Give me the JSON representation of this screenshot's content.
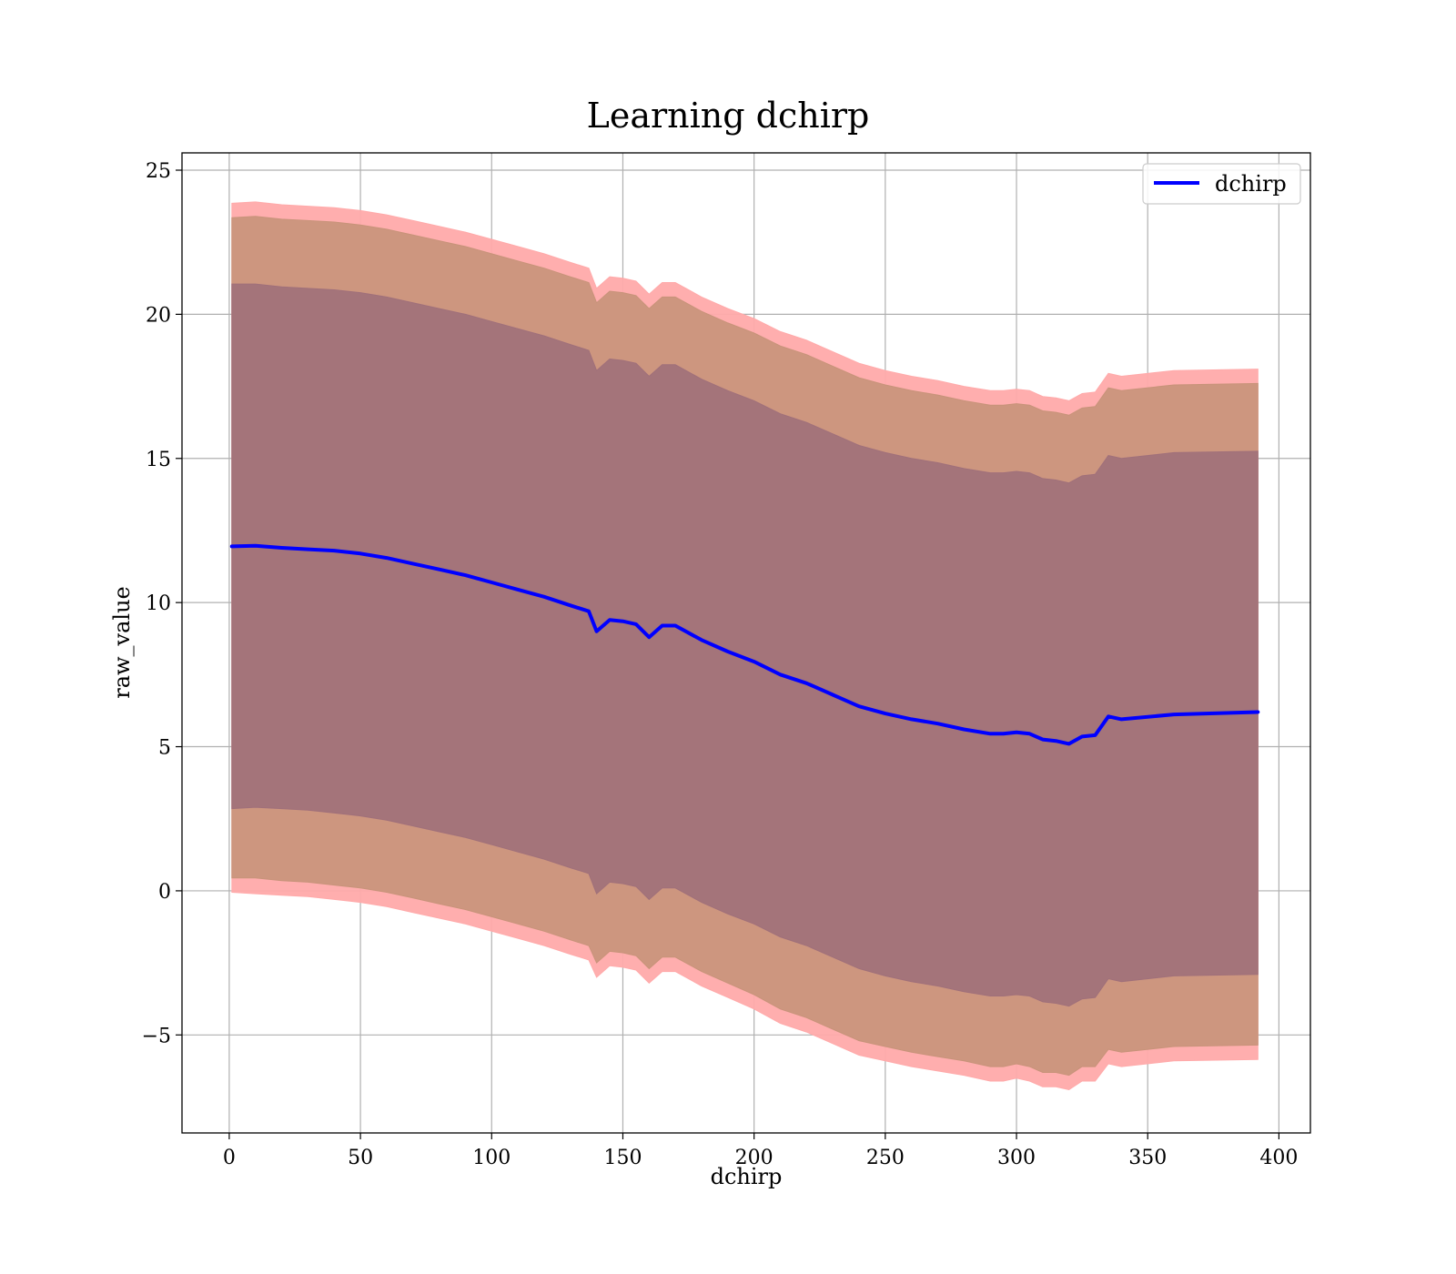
{
  "chart_data": {
    "type": "line",
    "title": "Learning dchirp",
    "xlabel": "dchirp",
    "ylabel": "raw_value",
    "xlim": [
      -18,
      412
    ],
    "ylim": [
      -8.4,
      25.6
    ],
    "xticks": [
      0,
      50,
      100,
      150,
      200,
      250,
      300,
      350,
      400
    ],
    "xtick_labels": [
      "0",
      "50",
      "100",
      "150",
      "200",
      "250",
      "300",
      "350",
      "400"
    ],
    "yticks": [
      -5,
      0,
      5,
      10,
      15,
      20,
      25
    ],
    "ytick_labels": [
      "−5",
      "0",
      "5",
      "10",
      "15",
      "20",
      "25"
    ],
    "grid": true,
    "legend": {
      "position": "top-right",
      "entries": [
        "dchirp"
      ]
    },
    "colors": {
      "line": "#0000ff",
      "band_outer": "#ffaaaa",
      "band_middle": "#c8937a",
      "band_inner": "#a0707a"
    },
    "x": [
      1,
      10,
      20,
      30,
      40,
      50,
      60,
      70,
      80,
      90,
      100,
      110,
      120,
      130,
      137,
      140,
      145,
      150,
      155,
      160,
      165,
      170,
      180,
      190,
      200,
      210,
      220,
      230,
      240,
      250,
      260,
      270,
      280,
      290,
      295,
      300,
      305,
      310,
      315,
      320,
      325,
      330,
      335,
      340,
      360,
      392
    ],
    "series": [
      {
        "name": "dchirp",
        "values": [
          11.95,
          11.97,
          11.9,
          11.85,
          11.8,
          11.7,
          11.55,
          11.35,
          11.15,
          10.95,
          10.7,
          10.45,
          10.2,
          9.9,
          9.7,
          9.0,
          9.4,
          9.35,
          9.25,
          8.8,
          9.2,
          9.2,
          8.7,
          8.3,
          7.95,
          7.5,
          7.2,
          6.8,
          6.4,
          6.15,
          5.95,
          5.8,
          5.6,
          5.45,
          5.45,
          5.5,
          5.45,
          5.25,
          5.2,
          5.1,
          5.35,
          5.4,
          6.05,
          5.95,
          6.12,
          6.2
        ],
        "bands": [
          {
            "lower": [
              -0.05,
              -0.1,
              -0.15,
              -0.2,
              -0.3,
              -0.4,
              -0.55,
              -0.75,
              -0.95,
              -1.15,
              -1.4,
              -1.65,
              -1.9,
              -2.2,
              -2.4,
              -3.0,
              -2.6,
              -2.65,
              -2.75,
              -3.2,
              -2.8,
              -2.8,
              -3.3,
              -3.7,
              -4.1,
              -4.6,
              -4.9,
              -5.3,
              -5.7,
              -5.9,
              -6.1,
              -6.25,
              -6.4,
              -6.6,
              -6.6,
              -6.5,
              -6.6,
              -6.8,
              -6.8,
              -6.9,
              -6.6,
              -6.6,
              -6.0,
              -6.1,
              -5.9,
              -5.85
            ],
            "upper": [
              23.85,
              23.9,
              23.8,
              23.75,
              23.7,
              23.6,
              23.45,
              23.25,
              23.05,
              22.85,
              22.6,
              22.35,
              22.1,
              21.8,
              21.6,
              20.9,
              21.3,
              21.25,
              21.15,
              20.7,
              21.1,
              21.1,
              20.6,
              20.2,
              19.85,
              19.4,
              19.1,
              18.7,
              18.3,
              18.05,
              17.85,
              17.7,
              17.5,
              17.35,
              17.35,
              17.4,
              17.35,
              17.15,
              17.1,
              17.0,
              17.25,
              17.3,
              17.95,
              17.85,
              18.05,
              18.1
            ]
          },
          {
            "lower": [
              0.45,
              0.45,
              0.35,
              0.3,
              0.2,
              0.1,
              -0.05,
              -0.25,
              -0.45,
              -0.65,
              -0.9,
              -1.15,
              -1.4,
              -1.7,
              -1.9,
              -2.5,
              -2.1,
              -2.15,
              -2.25,
              -2.7,
              -2.3,
              -2.3,
              -2.8,
              -3.2,
              -3.6,
              -4.1,
              -4.4,
              -4.8,
              -5.2,
              -5.4,
              -5.6,
              -5.75,
              -5.9,
              -6.1,
              -6.1,
              -6.0,
              -6.1,
              -6.3,
              -6.3,
              -6.4,
              -6.1,
              -6.1,
              -5.5,
              -5.6,
              -5.4,
              -5.35
            ],
            "upper": [
              23.35,
              23.4,
              23.3,
              23.25,
              23.2,
              23.1,
              22.95,
              22.75,
              22.55,
              22.35,
              22.1,
              21.85,
              21.6,
              21.3,
              21.1,
              20.4,
              20.8,
              20.75,
              20.65,
              20.2,
              20.6,
              20.6,
              20.1,
              19.7,
              19.35,
              18.9,
              18.6,
              18.2,
              17.8,
              17.55,
              17.35,
              17.2,
              17.0,
              16.85,
              16.85,
              16.9,
              16.85,
              16.65,
              16.6,
              16.5,
              16.75,
              16.8,
              17.45,
              17.35,
              17.55,
              17.6
            ]
          },
          {
            "lower": [
              2.85,
              2.9,
              2.85,
              2.8,
              2.7,
              2.6,
              2.45,
              2.25,
              2.05,
              1.85,
              1.6,
              1.35,
              1.1,
              0.8,
              0.6,
              -0.1,
              0.3,
              0.25,
              0.15,
              -0.3,
              0.1,
              0.1,
              -0.4,
              -0.8,
              -1.15,
              -1.6,
              -1.9,
              -2.3,
              -2.7,
              -2.95,
              -3.15,
              -3.3,
              -3.5,
              -3.65,
              -3.65,
              -3.6,
              -3.65,
              -3.85,
              -3.9,
              -4.0,
              -3.75,
              -3.7,
              -3.05,
              -3.15,
              -2.95,
              -2.9
            ],
            "upper": [
              21.05,
              21.05,
              20.95,
              20.9,
              20.85,
              20.75,
              20.6,
              20.4,
              20.2,
              20.0,
              19.75,
              19.5,
              19.25,
              18.95,
              18.75,
              18.05,
              18.45,
              18.4,
              18.3,
              17.85,
              18.25,
              18.25,
              17.75,
              17.35,
              17.0,
              16.55,
              16.25,
              15.85,
              15.45,
              15.2,
              15.0,
              14.85,
              14.65,
              14.5,
              14.5,
              14.55,
              14.5,
              14.3,
              14.25,
              14.15,
              14.4,
              14.45,
              15.1,
              15.0,
              15.2,
              15.25
            ]
          }
        ]
      }
    ]
  }
}
